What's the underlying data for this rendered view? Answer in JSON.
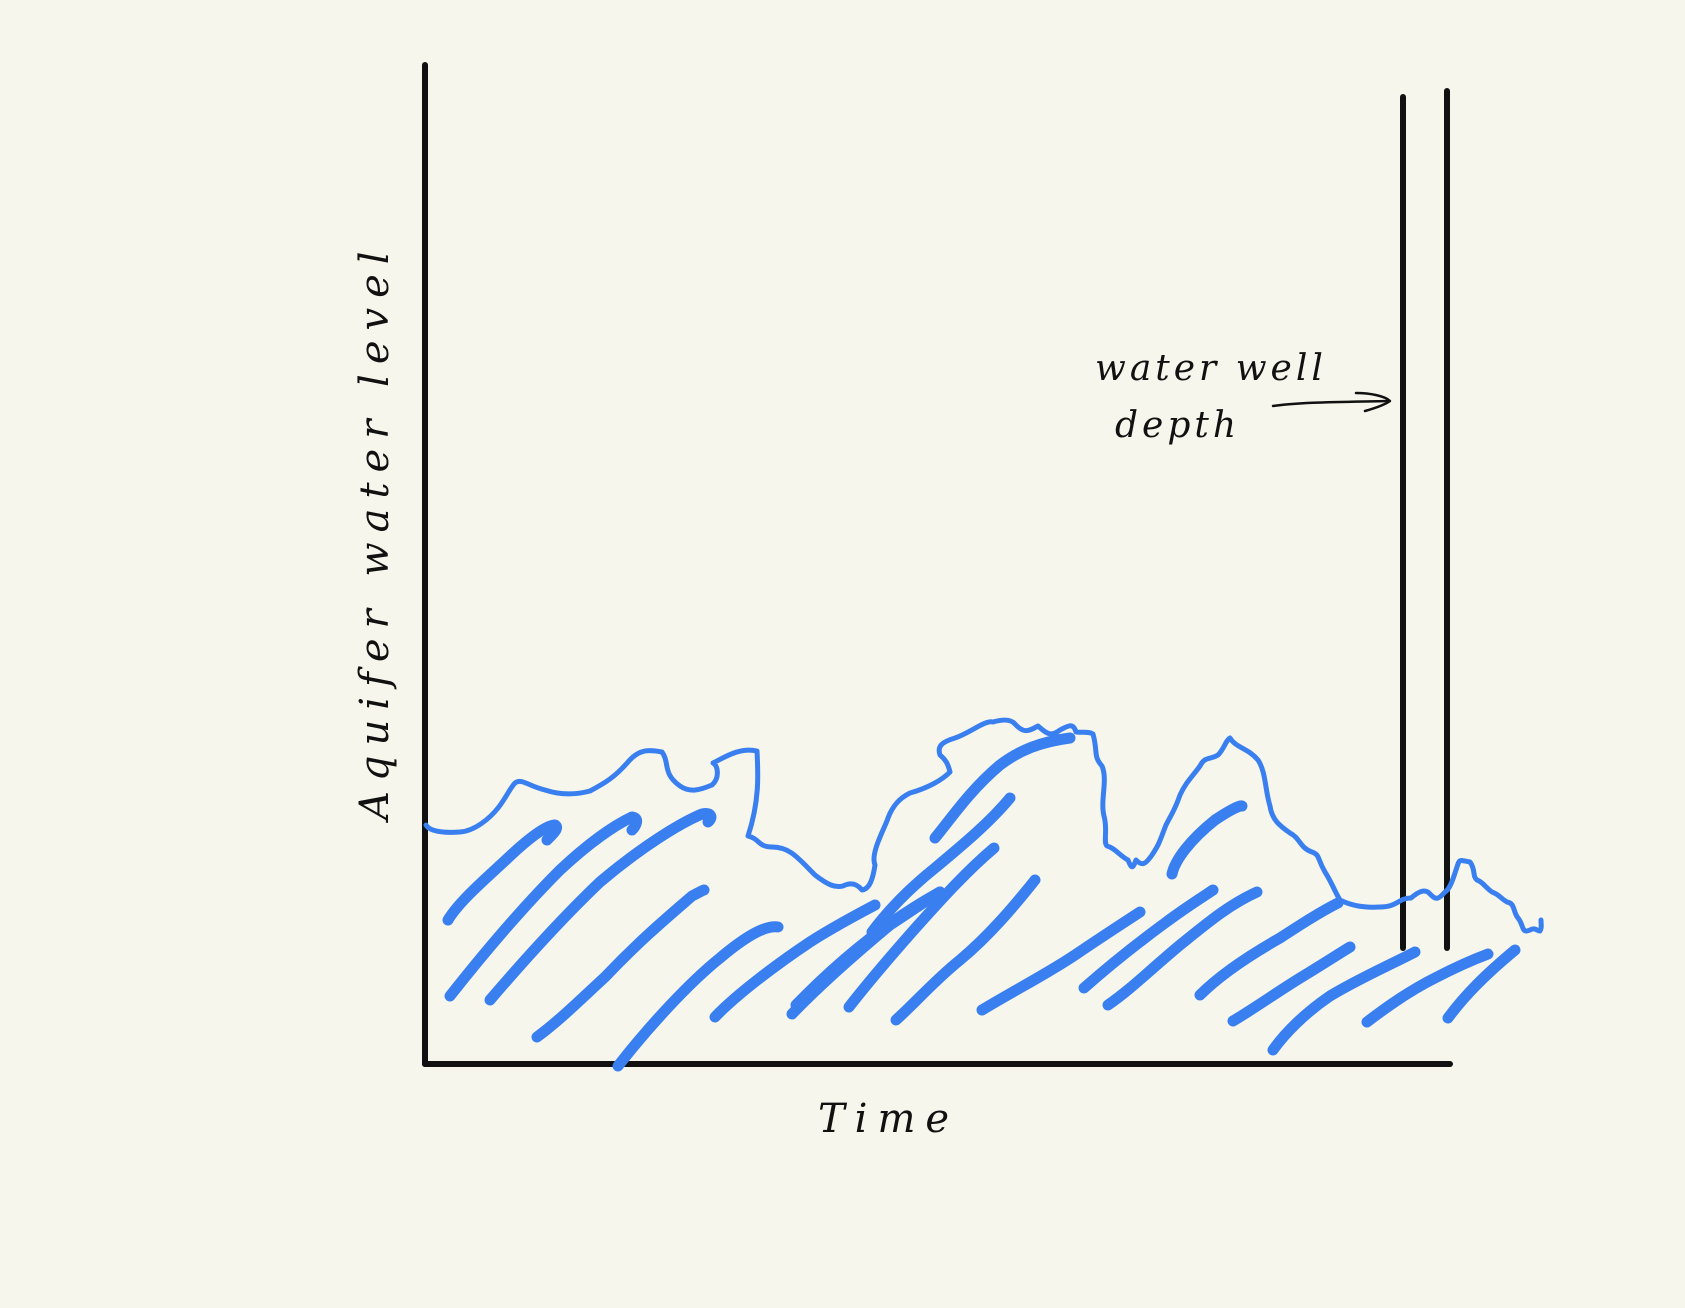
{
  "labels": {
    "y_axis": "Aquifer water level",
    "x_axis": "Time",
    "annotation_line1": "water well",
    "annotation_line2": "depth"
  },
  "colors": {
    "background": "#f6f6ec",
    "ink": "#111111",
    "water": "#3a7ff0"
  }
}
